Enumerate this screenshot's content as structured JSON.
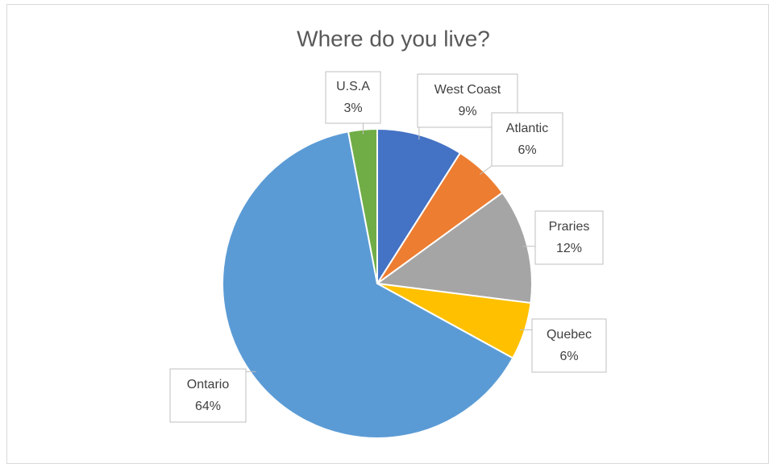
{
  "chart_data": {
    "type": "pie",
    "title": "Where do you live?",
    "categories": [
      "West Coast",
      "Atlantic",
      "Praries",
      "Quebec",
      "Ontario",
      "U.S.A"
    ],
    "values": [
      9,
      6,
      12,
      6,
      64,
      3
    ],
    "value_labels": [
      "9%",
      "6%",
      "12%",
      "6%",
      "64%",
      "3%"
    ],
    "colors": [
      "#4472c4",
      "#ed7d31",
      "#a5a5a5",
      "#ffc000",
      "#5b9bd5",
      "#70ad47"
    ]
  }
}
